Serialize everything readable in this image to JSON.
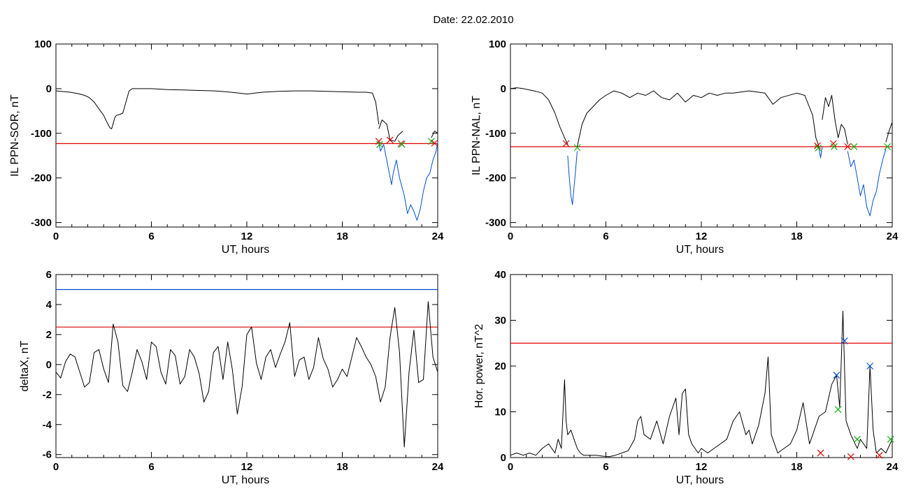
{
  "figure": {
    "title": "Date:  22.02.2010"
  },
  "colors": {
    "threshold_red": "#e00000",
    "blue": "#0050d0",
    "green": "#10b010",
    "black": "#000000"
  },
  "chart_data": [
    {
      "id": "il-sor",
      "type": "line",
      "xlabel": "UT, hours",
      "ylabel": "IL PPN-SOR, nT",
      "xlim": [
        0,
        24
      ],
      "ylim": [
        -310,
        100
      ],
      "xticks": [
        0,
        6,
        12,
        18,
        24
      ],
      "yticks": [
        100,
        0,
        -100,
        -200,
        -300
      ],
      "series": [
        {
          "style": "line",
          "color": "#000000",
          "x": [
            0,
            0.3,
            0.6,
            0.9,
            1.2,
            1.5,
            1.8,
            2.1,
            2.4,
            2.7,
            3.0,
            3.2,
            3.4,
            3.5,
            3.6,
            3.7,
            3.8,
            4.0,
            4.2,
            4.4,
            4.6,
            4.8,
            5.0,
            5.5,
            6.0,
            7,
            8,
            9,
            10,
            11,
            11.5,
            12,
            12.5,
            13,
            14,
            15,
            16,
            17,
            18,
            19,
            19.5,
            19.9,
            20.1,
            20.3
          ],
          "y": [
            -5,
            -6,
            -7,
            -8,
            -10,
            -12,
            -15,
            -20,
            -30,
            -45,
            -60,
            -75,
            -88,
            -90,
            -78,
            -65,
            -60,
            -58,
            -55,
            -30,
            -5,
            0,
            0,
            0,
            0,
            -2,
            -3,
            -4,
            -5,
            -8,
            -10,
            -12,
            -10,
            -8,
            -6,
            -5,
            -5,
            -6,
            -7,
            -8,
            -8,
            -10,
            -30,
            -80
          ]
        },
        {
          "style": "line",
          "color": "#000000",
          "x": [
            20.3,
            20.5,
            20.8,
            21.0,
            21.3,
            21.5,
            21.8
          ],
          "y": [
            -90,
            -70,
            -80,
            -115,
            -118,
            -105,
            -95
          ]
        },
        {
          "style": "line",
          "color": "#0050d0",
          "x": [
            20.3,
            20.4,
            20.6,
            20.9,
            21.1,
            21.2,
            21.4,
            21.6,
            21.9,
            22.1,
            22.3,
            22.5,
            22.7,
            22.9,
            23.1,
            23.3,
            23.5,
            23.7,
            23.9,
            24.0
          ],
          "y": [
            -120,
            -140,
            -125,
            -180,
            -215,
            -190,
            -160,
            -200,
            -240,
            -280,
            -260,
            -275,
            -295,
            -270,
            -230,
            -200,
            -190,
            -160,
            -140,
            -120
          ]
        },
        {
          "style": "line",
          "color": "#000000",
          "x": [
            23.6,
            23.8,
            24.0
          ],
          "y": [
            -110,
            -95,
            -100
          ]
        }
      ],
      "hlines": [
        {
          "y": -123,
          "color": "#e00000"
        }
      ],
      "markers": [
        {
          "x": 20.3,
          "y": -118,
          "color": "#e00000"
        },
        {
          "x": 20.35,
          "y": -125,
          "color": "#10b010"
        },
        {
          "x": 21.0,
          "y": -115,
          "color": "#e00000"
        },
        {
          "x": 21.7,
          "y": -123,
          "color": "#e00000"
        },
        {
          "x": 21.75,
          "y": -125,
          "color": "#10b010"
        },
        {
          "x": 23.6,
          "y": -118,
          "color": "#10b010"
        },
        {
          "x": 23.8,
          "y": -122,
          "color": "#e00000"
        }
      ]
    },
    {
      "id": "il-nal",
      "type": "line",
      "xlabel": "UT, hours",
      "ylabel": "IL PPN-NAL, nT",
      "xlim": [
        0,
        24
      ],
      "ylim": [
        -310,
        100
      ],
      "xticks": [
        0,
        6,
        12,
        18,
        24
      ],
      "yticks": [
        100,
        0,
        -100,
        -200,
        -300
      ],
      "series": [
        {
          "style": "line",
          "color": "#000000",
          "x": [
            0,
            0.4,
            0.8,
            1.2,
            1.6,
            2.0,
            2.4,
            2.8,
            3.1,
            3.4,
            3.6
          ],
          "y": [
            0,
            2,
            0,
            -3,
            -6,
            -10,
            -25,
            -55,
            -85,
            -110,
            -125
          ]
        },
        {
          "style": "line",
          "color": "#0050d0",
          "x": [
            3.6,
            3.7,
            3.8,
            3.9,
            4.0,
            4.1,
            4.2
          ],
          "y": [
            -150,
            -200,
            -240,
            -260,
            -220,
            -180,
            -140
          ]
        },
        {
          "style": "line",
          "color": "#000000",
          "x": [
            4.2,
            4.5,
            4.8,
            5.2,
            5.6,
            6.0,
            6.5,
            7,
            7.5,
            8,
            8.5,
            9,
            9.5,
            10,
            10.5,
            11,
            11.5,
            12,
            12.5,
            13,
            13.5,
            14,
            15,
            16,
            16.5,
            17,
            18,
            18.5,
            19.0,
            19.2,
            19.4
          ],
          "y": [
            -130,
            -80,
            -55,
            -40,
            -25,
            -15,
            -5,
            -10,
            -20,
            -10,
            -15,
            -5,
            -20,
            -25,
            -10,
            -30,
            -15,
            -20,
            -10,
            -15,
            -10,
            -10,
            -5,
            -10,
            -35,
            -20,
            -10,
            -15,
            -60,
            -110,
            -130
          ]
        },
        {
          "style": "line",
          "color": "#0050d0",
          "x": [
            19.4,
            19.5,
            19.6
          ],
          "y": [
            -135,
            -155,
            -130
          ]
        },
        {
          "style": "line",
          "color": "#000000",
          "x": [
            19.6,
            19.8,
            20.0,
            20.2,
            20.4,
            20.6,
            20.8,
            21.0,
            21.2
          ],
          "y": [
            -70,
            -20,
            -40,
            -15,
            -70,
            -110,
            -80,
            -90,
            -125
          ]
        },
        {
          "style": "line",
          "color": "#0050d0",
          "x": [
            21.2,
            21.4,
            21.6,
            21.8,
            22.0,
            22.2,
            22.4,
            22.6,
            22.8,
            23.0,
            23.2,
            23.4,
            23.6
          ],
          "y": [
            -140,
            -175,
            -160,
            -200,
            -240,
            -215,
            -265,
            -285,
            -250,
            -230,
            -190,
            -160,
            -135
          ]
        },
        {
          "style": "line",
          "color": "#000000",
          "x": [
            23.6,
            23.8,
            24.0
          ],
          "y": [
            -120,
            -95,
            -75
          ]
        }
      ],
      "hlines": [
        {
          "y": -130,
          "color": "#e00000"
        }
      ],
      "markers": [
        {
          "x": 3.5,
          "y": -123,
          "color": "#e00000"
        },
        {
          "x": 4.2,
          "y": -132,
          "color": "#10b010"
        },
        {
          "x": 19.3,
          "y": -128,
          "color": "#e00000"
        },
        {
          "x": 19.35,
          "y": -133,
          "color": "#10b010"
        },
        {
          "x": 20.3,
          "y": -123,
          "color": "#e00000"
        },
        {
          "x": 20.35,
          "y": -130,
          "color": "#10b010"
        },
        {
          "x": 21.2,
          "y": -130,
          "color": "#e00000"
        },
        {
          "x": 21.6,
          "y": -130,
          "color": "#10b010"
        },
        {
          "x": 23.7,
          "y": -130,
          "color": "#10b010"
        }
      ]
    },
    {
      "id": "delta-x",
      "type": "line",
      "xlabel": "UT, hours",
      "ylabel": "deltaX, nT",
      "xlim": [
        0,
        24
      ],
      "ylim": [
        -6.2,
        6
      ],
      "xticks": [
        0,
        6,
        12,
        18,
        24
      ],
      "yticks": [
        6,
        4,
        2,
        0,
        -2,
        -4,
        -6
      ],
      "series": [
        {
          "style": "line",
          "color": "#000000",
          "x": [
            0,
            0.3,
            0.6,
            0.9,
            1.2,
            1.5,
            1.8,
            2.1,
            2.4,
            2.7,
            3.0,
            3.3,
            3.6,
            3.9,
            4.2,
            4.5,
            4.8,
            5.1,
            5.4,
            5.7,
            6.0,
            6.3,
            6.6,
            6.9,
            7.2,
            7.5,
            7.8,
            8.1,
            8.4,
            8.7,
            9.0,
            9.3,
            9.6,
            9.9,
            10.2,
            10.5,
            10.8,
            11.1,
            11.4,
            11.7,
            12.0,
            12.3,
            12.6,
            12.9,
            13.2,
            13.5,
            13.8,
            14.1,
            14.4,
            14.7,
            15.0,
            15.3,
            15.6,
            15.9,
            16.2,
            16.5,
            16.8,
            17.1,
            17.4,
            17.7,
            18.0,
            18.3,
            18.6,
            18.9,
            19.2,
            19.5,
            19.8,
            20.1,
            20.4,
            20.7,
            21.0,
            21.3,
            21.6,
            21.9,
            22.2,
            22.5,
            22.8,
            23.1,
            23.4,
            23.7,
            24.0
          ],
          "y": [
            -0.5,
            -0.9,
            0.2,
            0.7,
            0.5,
            -0.5,
            -1.5,
            -1.2,
            0.8,
            1.0,
            -0.3,
            -1.2,
            2.7,
            1.5,
            -1.4,
            -1.8,
            -0.5,
            1.0,
            0.2,
            -1.0,
            1.5,
            1.2,
            -0.5,
            -1.3,
            1.0,
            0.6,
            -1.3,
            -0.8,
            1.0,
            0.5,
            -0.6,
            -2.5,
            -1.8,
            0.8,
            1.2,
            -1.0,
            1.5,
            -0.4,
            -3.3,
            -1.5,
            2.0,
            2.5,
            0.1,
            -1.0,
            0.5,
            1.0,
            -0.2,
            0.7,
            1.5,
            2.8,
            -0.8,
            0.3,
            0.5,
            -1.0,
            -0.2,
            1.8,
            0.4,
            -0.3,
            -1.5,
            -1.0,
            -0.3,
            -0.8,
            0.5,
            1.8,
            1.2,
            0.5,
            0.0,
            -0.8,
            -2.5,
            -1.5,
            1.8,
            3.8,
            0.8,
            -5.5,
            -0.5,
            2.3,
            -1.2,
            -1.0,
            4.2,
            0.5,
            -0.5
          ]
        }
      ],
      "hlines": [
        {
          "y": 5.0,
          "color": "#0050d0"
        },
        {
          "y": 2.5,
          "color": "#e00000"
        }
      ],
      "markers": []
    },
    {
      "id": "hor-power",
      "type": "line",
      "xlabel": "UT, hours",
      "ylabel": "Hor. power, nT^2",
      "xlim": [
        0,
        24
      ],
      "ylim": [
        0,
        40
      ],
      "xticks": [
        0,
        6,
        12,
        18,
        24
      ],
      "yticks": [
        40,
        30,
        20,
        10,
        0
      ],
      "series": [
        {
          "style": "line",
          "color": "#000000",
          "x": [
            0,
            0.4,
            0.8,
            1.2,
            1.6,
            2.0,
            2.4,
            2.8,
            3.0,
            3.2,
            3.4,
            3.5,
            3.6,
            3.8,
            4.0,
            4.2,
            4.4,
            4.6,
            4.8,
            5.0,
            5.4,
            5.8,
            6.2,
            6.6,
            7.0,
            7.4,
            7.8,
            8.0,
            8.2,
            8.4,
            8.8,
            9.2,
            9.6,
            10.0,
            10.4,
            10.6,
            10.8,
            11.0,
            11.2,
            11.4,
            11.6,
            11.8,
            12.0,
            12.4,
            12.8,
            13.2,
            13.6,
            14.0,
            14.4,
            14.8,
            15.0,
            15.2,
            15.6,
            16.0,
            16.2,
            16.4,
            16.6,
            16.8,
            17.2,
            17.6,
            18.0,
            18.4,
            18.8,
            19.0,
            19.4,
            19.8,
            20.2,
            20.5,
            20.7,
            20.9,
            21.1,
            21.4,
            21.8,
            22.0,
            22.2,
            22.4,
            22.6,
            22.8,
            23.0,
            23.3,
            23.6,
            24.0
          ],
          "y": [
            0.5,
            1,
            0.5,
            1,
            0.5,
            2,
            3,
            1,
            4,
            2,
            17,
            8,
            5,
            6,
            4,
            2,
            1,
            0.5,
            0.5,
            0.5,
            0.5,
            0.3,
            0.2,
            0.5,
            1,
            1.5,
            4,
            8,
            9,
            5,
            4,
            8,
            3,
            9,
            13,
            5,
            14,
            15,
            5,
            3,
            2,
            1,
            2,
            1,
            2,
            3,
            4,
            8,
            10,
            5,
            6,
            3,
            7,
            14,
            22,
            5,
            3,
            1,
            2,
            3,
            6,
            12,
            3,
            5,
            9,
            10,
            16,
            18,
            11,
            32,
            8,
            5,
            2,
            4,
            3,
            2,
            20,
            6,
            1,
            2,
            1,
            4
          ]
        }
      ],
      "hlines": [
        {
          "y": 25,
          "color": "#e00000"
        }
      ],
      "markers": [
        {
          "x": 20.5,
          "y": 18,
          "color": "#0050d0"
        },
        {
          "x": 21.0,
          "y": 25.5,
          "color": "#0050d0"
        },
        {
          "x": 22.6,
          "y": 20,
          "color": "#0050d0"
        },
        {
          "x": 20.6,
          "y": 10.5,
          "color": "#10b010"
        },
        {
          "x": 21.8,
          "y": 4,
          "color": "#10b010"
        },
        {
          "x": 23.9,
          "y": 4,
          "color": "#10b010"
        },
        {
          "x": 19.5,
          "y": 1,
          "color": "#e00000"
        },
        {
          "x": 21.4,
          "y": 0.2,
          "color": "#e00000"
        },
        {
          "x": 23.2,
          "y": 0.5,
          "color": "#e00000"
        }
      ]
    }
  ]
}
